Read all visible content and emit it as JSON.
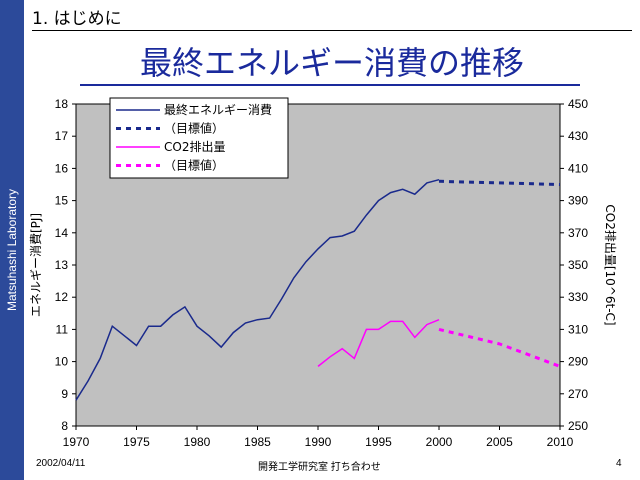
{
  "sidebar": {
    "lab_name": "Matsuhashi Laboratory"
  },
  "header": {
    "section": "1. はじめに",
    "title": "最終エネルギー消費の推移"
  },
  "footer": {
    "date": "2002/04/11",
    "meeting": "開発工学研究室 打ち合わせ",
    "page": "4"
  },
  "chart_data": {
    "type": "line",
    "background_color": "#c0c0c0",
    "grid": false,
    "legend_position": "top-left",
    "x": {
      "lim": [
        1970,
        2010
      ],
      "ticks": [
        1970,
        1975,
        1980,
        1985,
        1990,
        1995,
        2000,
        2005,
        2010
      ]
    },
    "y_left": {
      "label": "エネルギー消費[PJ]",
      "lim": [
        8,
        18
      ],
      "ticks": [
        8,
        9,
        10,
        11,
        12,
        13,
        14,
        15,
        16,
        17,
        18
      ]
    },
    "y_right": {
      "label": "CO2排出量[10^6t-C]",
      "lim": [
        250,
        450
      ],
      "ticks": [
        250,
        270,
        290,
        310,
        330,
        350,
        370,
        390,
        410,
        430,
        450
      ]
    },
    "series": [
      {
        "name": "最終エネルギー消費",
        "axis": "left",
        "color": "#1a2a8c",
        "style": "solid",
        "x": [
          1970,
          1971,
          1972,
          1973,
          1974,
          1975,
          1976,
          1977,
          1978,
          1979,
          1980,
          1981,
          1982,
          1983,
          1984,
          1985,
          1986,
          1987,
          1988,
          1989,
          1990,
          1991,
          1992,
          1993,
          1994,
          1995,
          1996,
          1997,
          1998,
          1999,
          2000
        ],
        "y": [
          8.8,
          9.4,
          10.1,
          11.1,
          10.8,
          10.5,
          11.1,
          11.1,
          11.45,
          11.7,
          11.1,
          10.8,
          10.45,
          10.9,
          11.2,
          11.3,
          11.35,
          11.95,
          12.6,
          13.1,
          13.5,
          13.85,
          13.9,
          14.05,
          14.55,
          15.0,
          15.25,
          15.35,
          15.2,
          15.55,
          15.65
        ]
      },
      {
        "name": "（目標値）",
        "axis": "left",
        "color": "#1a2a8c",
        "style": "dashed",
        "x": [
          2000,
          2005,
          2010
        ],
        "y": [
          15.6,
          15.55,
          15.5
        ]
      },
      {
        "name": "CO2排出量",
        "axis": "right",
        "color": "#ff00ff",
        "style": "solid",
        "x": [
          1990,
          1991,
          1992,
          1993,
          1994,
          1995,
          1996,
          1997,
          1998,
          1999,
          2000
        ],
        "y": [
          287,
          293,
          298,
          292,
          310,
          310,
          315,
          315,
          305,
          313,
          316
        ]
      },
      {
        "name": "（目標値）",
        "axis": "right",
        "color": "#ff00ff",
        "style": "dashed",
        "x": [
          2000,
          2005,
          2010
        ],
        "y": [
          310,
          301,
          287
        ]
      }
    ]
  }
}
